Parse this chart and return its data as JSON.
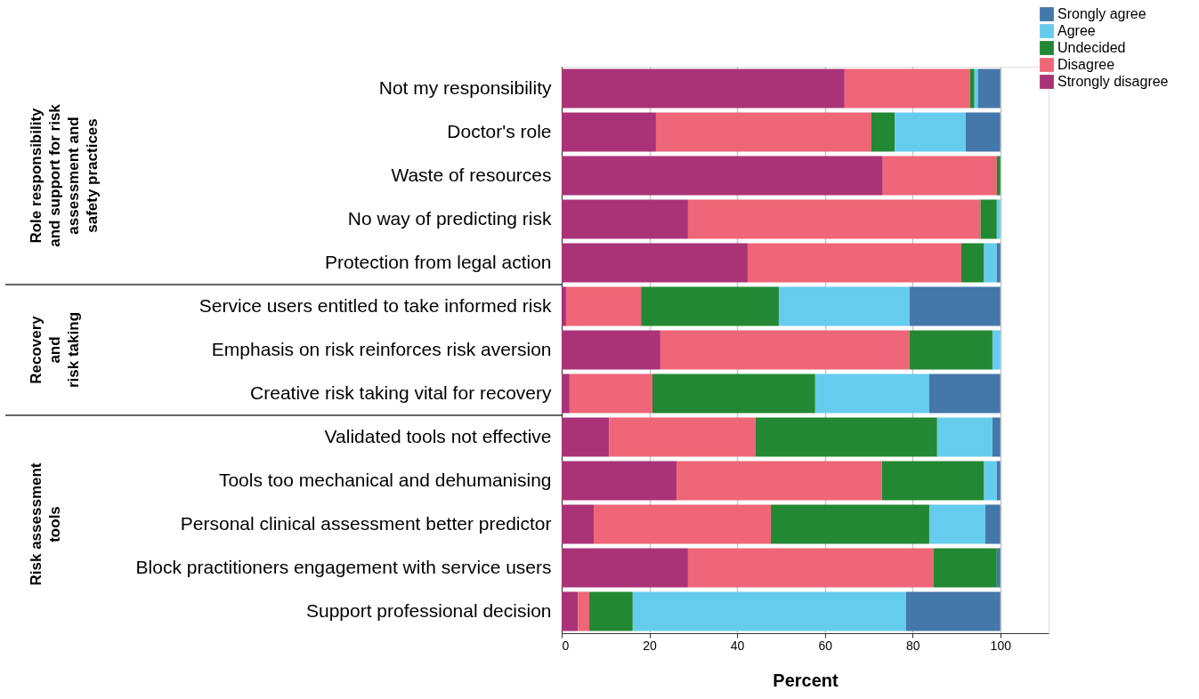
{
  "chart_data": {
    "type": "bar",
    "orientation": "horizontal",
    "stacked": true,
    "categories": [
      "Not my responsibility",
      "Doctor's role",
      "Waste of resources",
      "No way of predicting risk",
      "Protection from legal action",
      "Service users entitled to take informed risk",
      "Emphasis on risk reinforces risk aversion",
      "Creative risk taking vital for recovery",
      "Validated tools not effective",
      "Tools too mechanical and dehumanising",
      "Personal clinical assessment better predictor",
      "Block practitioners engagement with service users",
      "Support professional decision"
    ],
    "series": [
      {
        "name": "Strongly disagree",
        "color": "#aa3377",
        "values": [
          64.5,
          21.5,
          73.2,
          28.8,
          42.4,
          1.0,
          22.5,
          1.8,
          10.8,
          26.2,
          7.3,
          28.8,
          3.7
        ]
      },
      {
        "name": "Disagree",
        "color": "#ee6677",
        "values": [
          28.6,
          49.1,
          26.0,
          66.7,
          48.7,
          17.1,
          56.8,
          18.9,
          33.4,
          46.8,
          40.4,
          56.0,
          2.6
        ]
      },
      {
        "name": "Undecided",
        "color": "#228833",
        "values": [
          1.0,
          5.3,
          0.8,
          3.7,
          5.2,
          31.4,
          18.9,
          37.1,
          41.4,
          23.3,
          36.1,
          14.4,
          9.9
        ]
      },
      {
        "name": "Agree",
        "color": "#66ccee",
        "values": [
          0.8,
          16.2,
          null,
          0.8,
          2.9,
          29.8,
          1.8,
          26.0,
          12.6,
          2.9,
          12.8,
          null,
          62.3
        ]
      },
      {
        "name": "Srongly agree",
        "color": "#4477aa",
        "values": [
          5.1,
          7.9,
          null,
          null,
          0.8,
          20.7,
          null,
          16.2,
          1.8,
          0.8,
          3.4,
          0.8,
          21.5
        ]
      }
    ],
    "xlabel": "Percent",
    "xlim": [
      0,
      111
    ],
    "xticks": [
      0,
      20,
      40,
      60,
      80,
      100
    ],
    "grid": "x",
    "legend": "top right",
    "annotations": [
      "Role responsibility\nand support for risk\nassessment and\nsafety practices",
      "Recovery\nand\nrisk taking",
      "Risk assessment\ntools"
    ]
  }
}
